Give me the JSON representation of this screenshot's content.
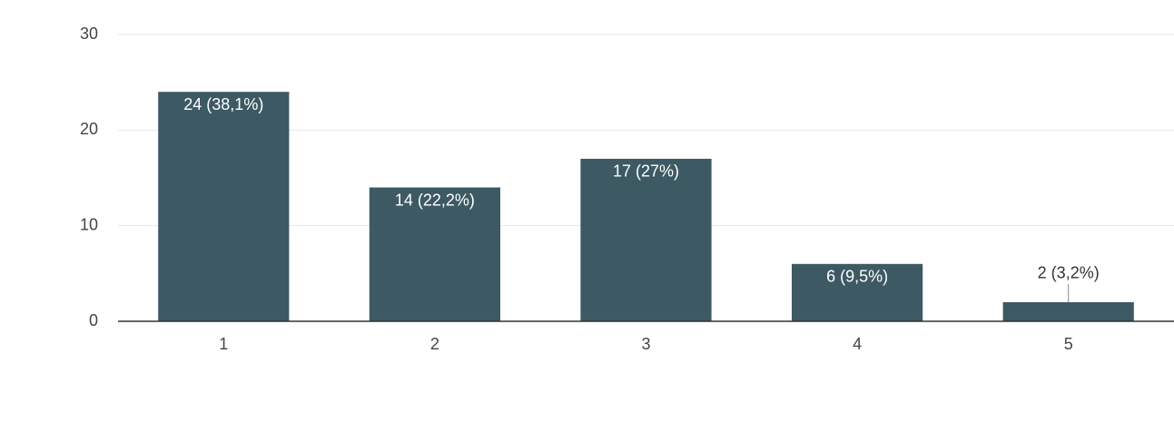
{
  "chart_data": {
    "type": "bar",
    "categories": [
      "1",
      "2",
      "3",
      "4",
      "5"
    ],
    "values": [
      24,
      14,
      17,
      6,
      2
    ],
    "value_labels": [
      "24 (38,1%)",
      "14 (22,2%)",
      "17 (27%)",
      "6 (9,5%)",
      "2 (3,2%)"
    ],
    "color": "#3d5a64",
    "ylim": [
      0,
      30
    ],
    "yticks": [
      0,
      10,
      20,
      30
    ],
    "grid": true
  }
}
